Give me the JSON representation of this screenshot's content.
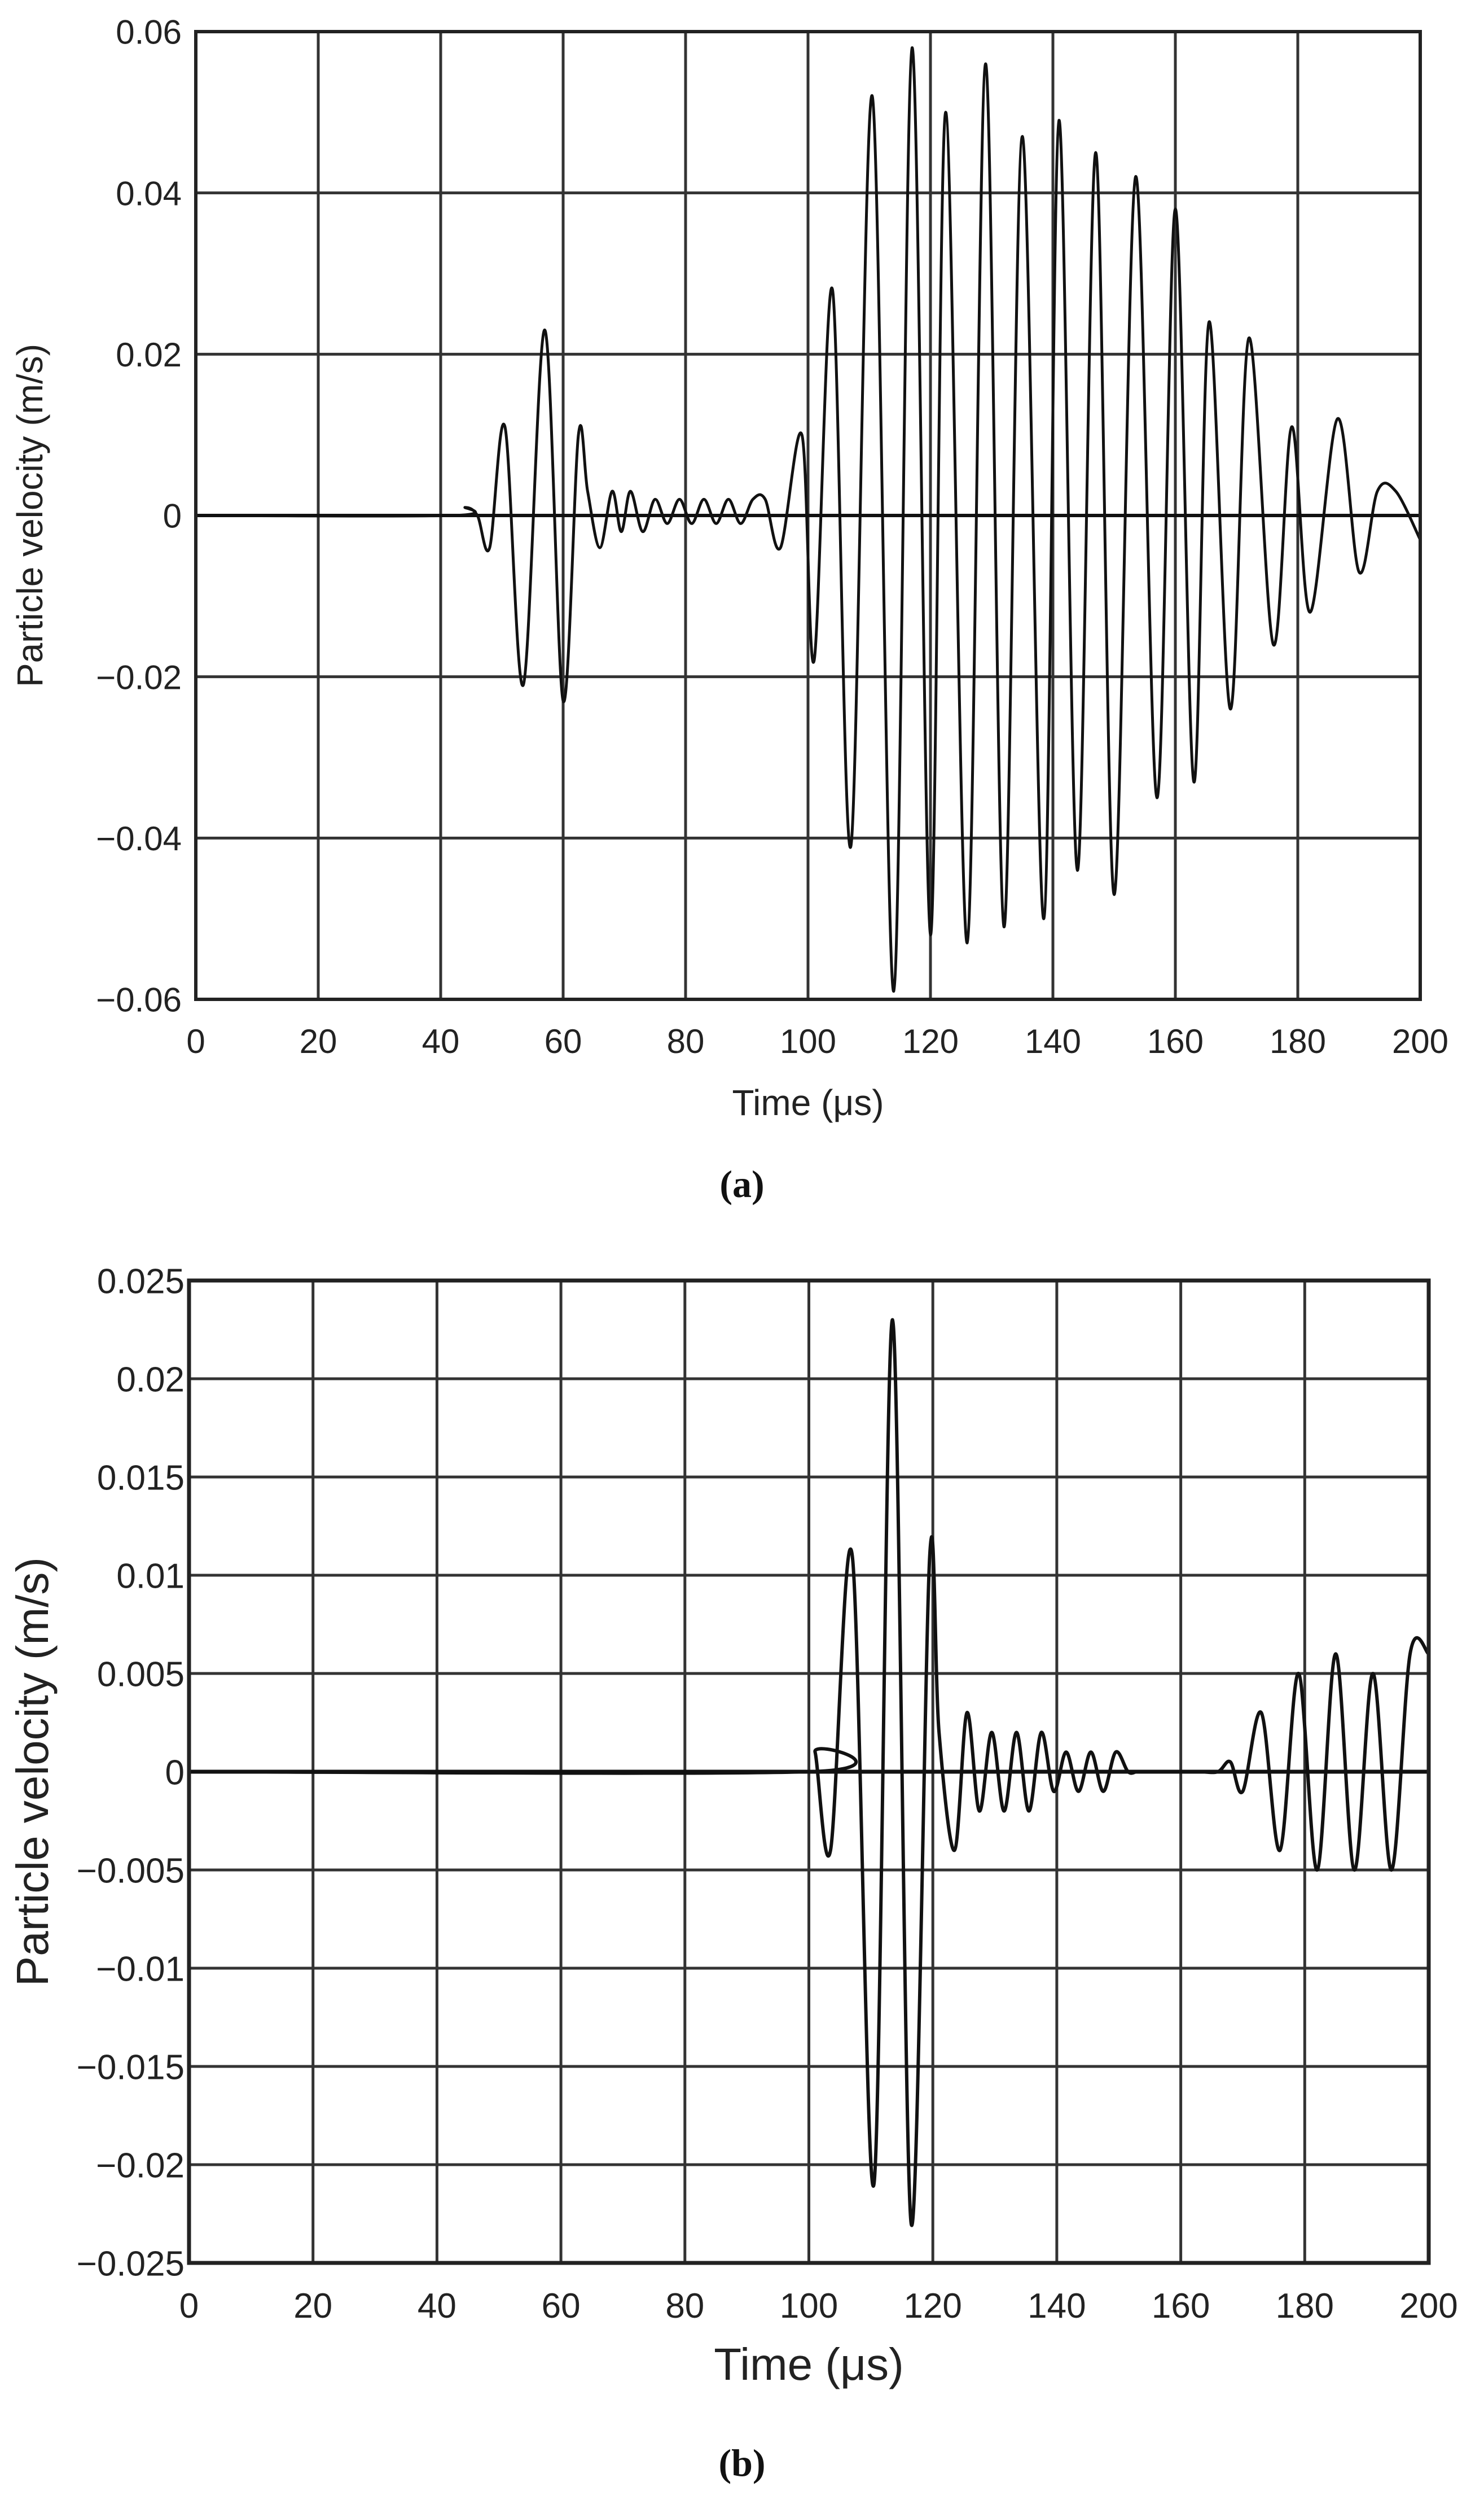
{
  "chart_data": [
    {
      "panel_label": "(a)",
      "type": "line",
      "title": "",
      "xlabel": "Time (μs)",
      "ylabel": "Particle velocity (m/s)",
      "xlim": [
        0,
        200
      ],
      "ylim": [
        -0.06,
        0.06
      ],
      "grid": true,
      "xticks": [
        0,
        20,
        40,
        60,
        80,
        100,
        120,
        140,
        160,
        180,
        200
      ],
      "xtick_labels": [
        "0",
        "20",
        "40",
        "60",
        "80",
        "100",
        "120",
        "140",
        "160",
        "180",
        "200"
      ],
      "yticks": [
        -0.06,
        -0.04,
        -0.02,
        0,
        0.02,
        0.04,
        0.06
      ],
      "ytick_labels": [
        "−0.06",
        "−0.04",
        "−0.02",
        "0",
        "0.02",
        "0.04",
        "0.06"
      ],
      "series": [
        {
          "name": "particle velocity",
          "x": [
            0,
            42,
            44,
            46,
            48,
            50.5,
            53.5,
            57,
            60,
            62.5,
            64,
            66,
            68,
            69.5,
            71,
            73,
            75,
            77,
            79,
            81,
            83,
            85,
            87,
            89,
            91,
            93,
            95.5,
            99,
            101,
            104,
            107,
            110.5,
            114,
            117,
            120,
            122.5,
            126,
            129,
            132,
            135,
            138.5,
            141,
            144,
            147,
            150,
            153.5,
            157,
            160,
            163,
            165.5,
            169,
            172,
            176,
            179,
            182,
            186.5,
            190,
            193,
            196,
            200
          ],
          "y": [
            0,
            0,
            0.001,
            0.0,
            -0.004,
            0.011,
            -0.021,
            0.023,
            -0.023,
            0.01,
            0.003,
            -0.004,
            0.003,
            -0.002,
            0.003,
            -0.002,
            0.002,
            -0.001,
            0.002,
            -0.001,
            0.002,
            -0.001,
            0.002,
            -0.001,
            0.002,
            0.002,
            -0.004,
            0.01,
            -0.018,
            0.028,
            -0.041,
            0.052,
            -0.059,
            0.058,
            -0.052,
            0.05,
            -0.053,
            0.056,
            -0.051,
            0.047,
            -0.05,
            0.049,
            -0.044,
            0.045,
            -0.047,
            0.042,
            -0.035,
            0.038,
            -0.033,
            0.024,
            -0.024,
            0.022,
            -0.016,
            0.011,
            -0.012,
            0.012,
            -0.007,
            0.003,
            0.003,
            -0.003
          ]
        }
      ]
    },
    {
      "panel_label": "(b)",
      "type": "line",
      "title": "",
      "xlabel": "Time (μs)",
      "ylabel": "Particle velocity (m/s)",
      "xlim": [
        0,
        200
      ],
      "ylim": [
        -0.025,
        0.025
      ],
      "grid": true,
      "xticks": [
        0,
        20,
        40,
        60,
        80,
        100,
        120,
        140,
        160,
        180,
        200
      ],
      "xtick_labels": [
        "0",
        "20",
        "40",
        "60",
        "80",
        "100",
        "120",
        "140",
        "160",
        "180",
        "200"
      ],
      "yticks": [
        -0.025,
        -0.02,
        -0.015,
        -0.01,
        -0.005,
        0,
        0.005,
        0.01,
        0.015,
        0.02,
        0.025
      ],
      "ytick_labels": [
        "−0.025",
        "−0.02",
        "−0.015",
        "−0.01",
        "−0.005",
        "0",
        "0.005",
        "0.01",
        "0.015",
        "0.02",
        "0.025"
      ],
      "series": [
        {
          "name": "particle velocity",
          "x": [
            0,
            100,
            101,
            103.5,
            107,
            110.5,
            113.5,
            116.5,
            119.5,
            121,
            123.5,
            125.5,
            127.5,
            129.5,
            131.5,
            133.5,
            135.5,
            137.5,
            139.5,
            141.5,
            143.5,
            145.5,
            147.5,
            149.5,
            151.5,
            153,
            155,
            157,
            160,
            163,
            166,
            168,
            170,
            173,
            176,
            179,
            182,
            185,
            188,
            191,
            194,
            197,
            200
          ],
          "y": [
            0,
            0,
            0.001,
            -0.004,
            0.011,
            -0.021,
            0.023,
            -0.023,
            0.011,
            0.002,
            -0.004,
            0.003,
            -0.002,
            0.002,
            -0.002,
            0.002,
            -0.002,
            0.002,
            -0.001,
            0.001,
            -0.001,
            0.001,
            -0.001,
            0.001,
            0.0,
            0.0,
            0.0,
            0.0,
            0.0,
            0.0,
            0.0,
            0.0005,
            -0.001,
            0.003,
            -0.004,
            0.005,
            -0.005,
            0.006,
            -0.005,
            0.005,
            -0.005,
            0.006,
            0.006
          ]
        }
      ]
    }
  ]
}
